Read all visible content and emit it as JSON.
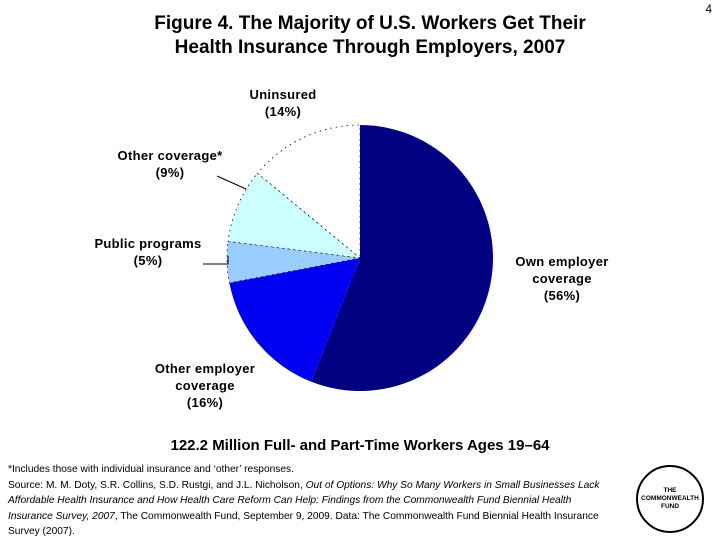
{
  "page_number": "4",
  "title": {
    "line1": "Figure 4. The Majority of U.S. Workers Get Their",
    "line2": "Health Insurance Through Employers, 2007"
  },
  "subtitle": "122.2 Million Full- and Part-Time Workers Ages 19–64",
  "labels": {
    "uninsured": {
      "name": "Uninsured",
      "pct": "(14%)"
    },
    "other_coverage": {
      "name": "Other coverage*",
      "pct": "(9%)"
    },
    "public_programs": {
      "name": "Public programs",
      "pct": "(5%)"
    },
    "own_employer": {
      "line1": "Own employer",
      "line2": "coverage",
      "pct": "(56%)"
    },
    "other_employer": {
      "line1": "Other employer",
      "line2": "coverage",
      "pct": "(16%)"
    }
  },
  "notes": {
    "footnote": "*Includes those with individual insurance and ‘other’ responses.",
    "source_prefix": "Source: M. M. Doty, S.R. Collins, S.D. Rustgi, and J.L. Nicholson, ",
    "source_title": "Out of Options: Why So Many Workers in Small Businesses Lack Affordable Health Insurance and How Health Care Reform Can Help: Findings from the Commonwealth Fund Biennial Health Insurance Survey, 2007",
    "source_suffix": ", The Commonwealth Fund, September 9, 2009. Data: The Commonwealth Fund Biennial Health Insurance Survey (2007)."
  },
  "logo": {
    "line1": "THE",
    "line2": "COMMONWEALTH",
    "line3": "FUND"
  },
  "colors": {
    "own_employer": "#000080",
    "other_employer": "#0000F0",
    "public_programs": "#99CCFF",
    "other_coverage": "#CCFFFF",
    "uninsured": "#FFFFFF"
  },
  "chart_data": {
    "type": "pie",
    "title": "Figure 4. The Majority of U.S. Workers Get Their Health Insurance Through Employers, 2007",
    "subtitle": "122.2 Million Full- and Part-Time Workers Ages 19–64",
    "start_angle_deg": 0,
    "direction": "clockwise",
    "categories": [
      "Own employer coverage",
      "Other employer coverage",
      "Public programs",
      "Other coverage*",
      "Uninsured"
    ],
    "values": [
      56,
      16,
      5,
      9,
      14
    ],
    "unit": "%",
    "colors": [
      "#000080",
      "#0000F0",
      "#99CCFF",
      "#CCFFFF",
      "#FFFFFF"
    ],
    "legend": "none (direct labels)"
  }
}
